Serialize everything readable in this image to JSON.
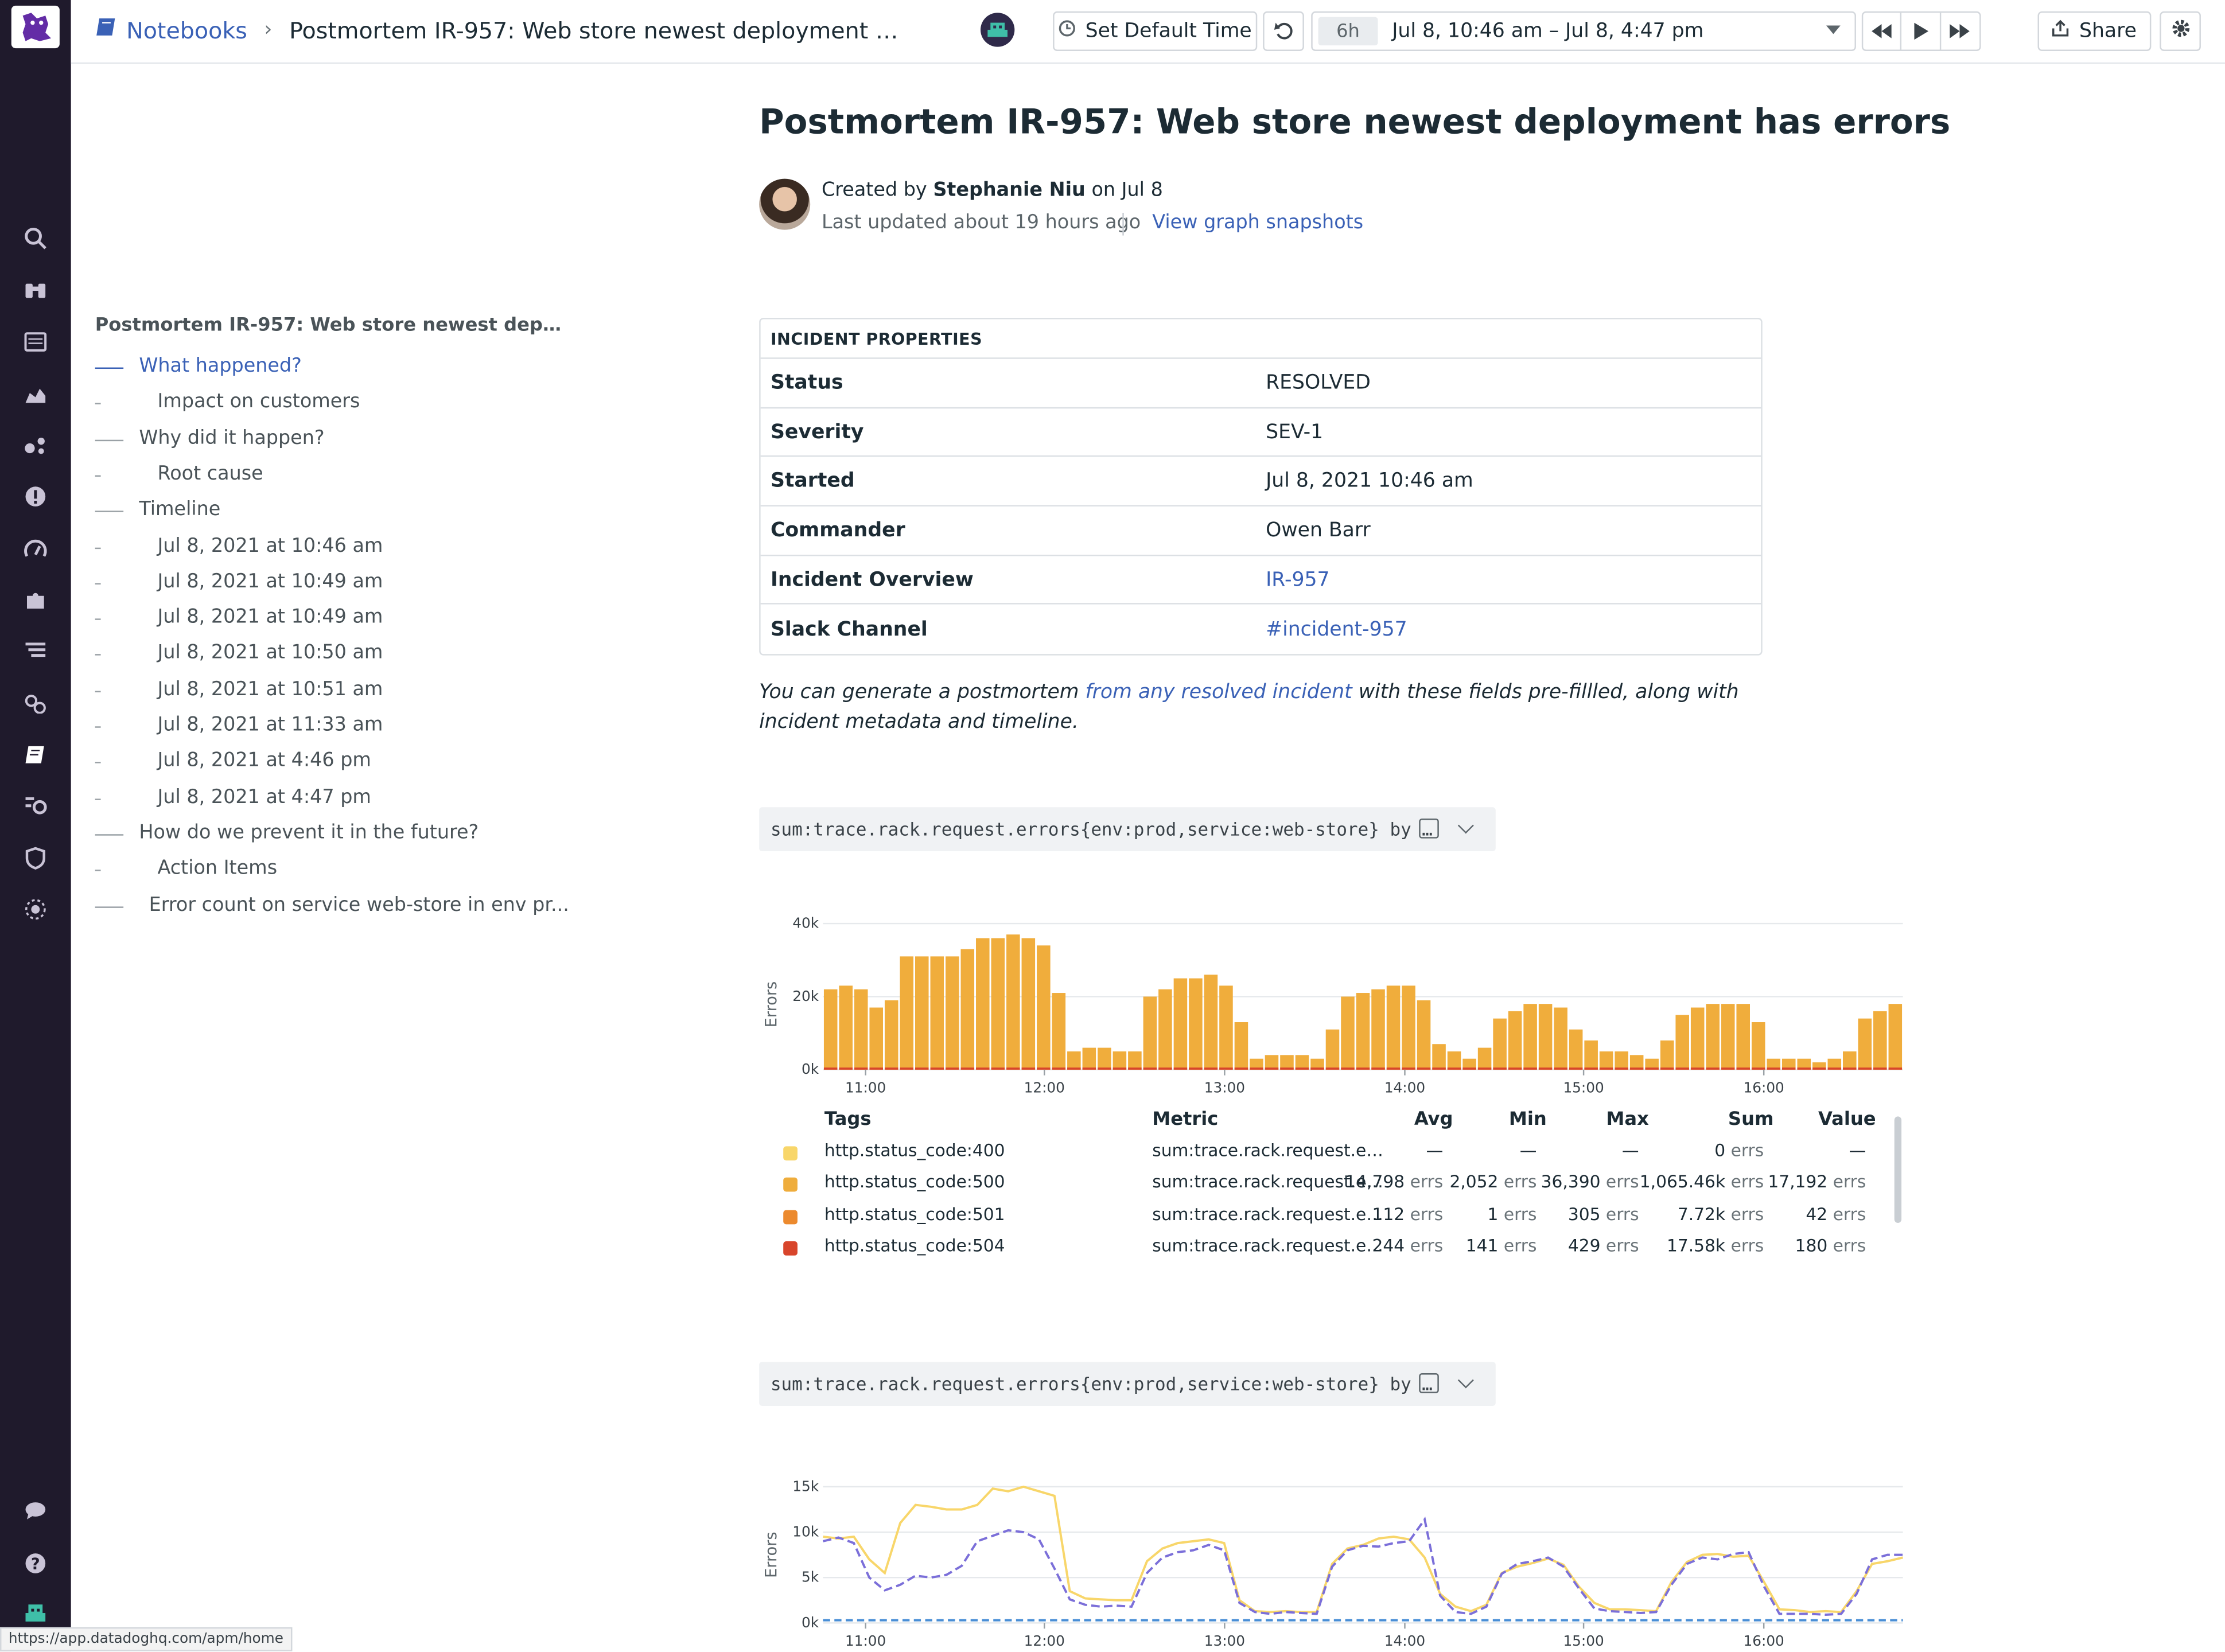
{
  "app": {
    "status_url": "https://app.datadoghq.com/apm/home"
  },
  "topbar": {
    "breadcrumb_root": "Notebooks",
    "breadcrumb_title": "Postmortem IR-957: Web store newest deployment has err...",
    "set_default_time": "Set Default Time",
    "time_span": "6h",
    "time_range": "Jul 8, 10:46 am – Jul 8, 4:47 pm",
    "share": "Share"
  },
  "toc": {
    "heading": "Postmortem IR-957: Web store newest deploy...",
    "items": [
      {
        "label": "What happened?",
        "level": 1,
        "active": true
      },
      {
        "label": "Impact on customers",
        "level": 2
      },
      {
        "label": "Why did it happen?",
        "level": 1
      },
      {
        "label": "Root cause",
        "level": 2
      },
      {
        "label": "Timeline",
        "level": 1
      },
      {
        "label": "Jul 8, 2021 at 10:46 am",
        "level": 2
      },
      {
        "label": "Jul 8, 2021 at 10:49 am",
        "level": 2
      },
      {
        "label": "Jul 8, 2021 at 10:49 am",
        "level": 2
      },
      {
        "label": "Jul 8, 2021 at 10:50 am",
        "level": 2
      },
      {
        "label": "Jul 8, 2021 at 10:51 am",
        "level": 2
      },
      {
        "label": "Jul 8, 2021 at 11:33 am",
        "level": 2
      },
      {
        "label": "Jul 8, 2021 at 4:46 pm",
        "level": 2
      },
      {
        "label": "Jul 8, 2021 at 4:47 pm",
        "level": 2
      },
      {
        "label": "How do we prevent it in the future?",
        "level": 1
      },
      {
        "label": "Action Items",
        "level": 2
      },
      {
        "label": "Error count on service web-store in env pr...",
        "level": 1.5
      }
    ]
  },
  "notebook": {
    "title": "Postmortem IR-957: Web store newest deployment has errors",
    "created_prefix": "Created by",
    "author": "Stephanie Niu",
    "created_suffix": "on Jul 8",
    "updated": "Last updated about 19 hours ago",
    "snapshots": "View graph snapshots",
    "props_header": "INCIDENT PROPERTIES",
    "props": [
      {
        "key": "Status",
        "value": "RESOLVED"
      },
      {
        "key": "Severity",
        "value": "SEV-1"
      },
      {
        "key": "Started",
        "value": "Jul 8, 2021 10:46 am"
      },
      {
        "key": "Commander",
        "value": "Owen Barr"
      },
      {
        "key": "Incident Overview",
        "value": "IR-957",
        "link": true
      },
      {
        "key": "Slack Channel",
        "value": "#incident-957",
        "link": true
      }
    ],
    "note_pre": "You can generate a postmortem ",
    "note_link": "from any resolved incident",
    "note_post": " with these fields pre-fillled, along with incident metadata and timeline.",
    "query1": "sum:trace.rack.request.errors{env:prod,service:web-store} by …",
    "query2": "sum:trace.rack.request.errors{env:prod,service:web-store} by …"
  },
  "colors": {
    "accent": "#3a61b6",
    "bar": "#f0ad3c",
    "s400": "#f8d66a",
    "s500": "#efad3c",
    "s501": "#ec8a2e",
    "s504": "#d8452b",
    "line1": "#f8d66a",
    "line2": "#7b6fd9"
  },
  "chart_data": [
    {
      "type": "bar",
      "ylabel": "Errors",
      "yticks": [
        "0k",
        "20k",
        "40k"
      ],
      "ylim": [
        0,
        45
      ],
      "xticks": [
        "11:00",
        "12:00",
        "13:00",
        "14:00",
        "15:00",
        "16:00"
      ],
      "values_k": [
        22,
        23,
        22,
        17,
        19,
        31,
        31,
        31,
        31,
        33,
        36,
        36,
        37,
        36,
        34,
        21,
        5,
        6,
        6,
        5,
        5,
        20,
        22,
        25,
        25,
        26,
        23,
        13,
        3,
        4,
        4,
        4,
        3,
        11,
        20,
        21,
        22,
        23,
        23,
        19,
        7,
        5,
        3,
        6,
        14,
        16,
        18,
        18,
        17,
        11,
        8,
        5,
        5,
        4,
        3,
        8,
        15,
        17,
        18,
        18,
        18,
        13,
        3,
        3,
        3,
        2,
        3,
        5,
        14,
        16,
        18
      ],
      "series_legend": {
        "headers": [
          "Tags",
          "Metric",
          "Avg",
          "Min",
          "Max",
          "Sum",
          "Value"
        ],
        "rows": [
          {
            "tag": "http.status_code:400",
            "metric": "sum:trace.rack.request.e…",
            "avg": "—",
            "min": "—",
            "max": "—",
            "sum": "0",
            "sum_u": "errs",
            "value": "—",
            "color": "#f8d66a"
          },
          {
            "tag": "http.status_code:500",
            "metric": "sum:trace.rack.request.e…",
            "avg": "14,798",
            "min": "2,052",
            "max": "36,390",
            "sum": "1,065.46k",
            "sum_u": "errs",
            "value": "17,192",
            "color": "#efad3c"
          },
          {
            "tag": "http.status_code:501",
            "metric": "sum:trace.rack.request.e…",
            "avg": "112",
            "min": "1",
            "max": "305",
            "sum": "7.72k",
            "sum_u": "errs",
            "value": "42",
            "color": "#ec8a2e"
          },
          {
            "tag": "http.status_code:504",
            "metric": "sum:trace.rack.request.e…",
            "avg": "244",
            "min": "141",
            "max": "429",
            "sum": "17.58k",
            "sum_u": "errs",
            "value": "180",
            "color": "#d8452b"
          }
        ],
        "unit": "errs"
      }
    },
    {
      "type": "line",
      "ylabel": "Errors",
      "yticks": [
        "0k",
        "5k",
        "10k",
        "15k"
      ],
      "ylim": [
        0,
        15
      ],
      "xticks": [
        "11:00",
        "12:00",
        "13:00",
        "14:00",
        "15:00",
        "16:00"
      ],
      "series_solid_k": [
        9.5,
        9.3,
        9.5,
        7,
        5.5,
        11,
        13,
        12.8,
        12.5,
        12.5,
        13,
        14.8,
        14.5,
        15,
        14.5,
        14,
        3.5,
        2.7,
        2.6,
        2.5,
        2.5,
        6.8,
        8.2,
        8.8,
        9,
        9.2,
        8.8,
        2.5,
        1.3,
        1.2,
        1.3,
        1.2,
        1.2,
        6.5,
        8.2,
        8.6,
        9.3,
        9.5,
        9.2,
        7.2,
        3.2,
        1.8,
        1.3,
        2,
        5.5,
        6.2,
        6.6,
        7.1,
        6.4,
        4,
        2.2,
        1.5,
        1.5,
        1.4,
        1.3,
        4.5,
        6.7,
        7.5,
        7.6,
        7.3,
        7.4,
        4.5,
        1.5,
        1.4,
        1.2,
        1.3,
        1.2,
        3.5,
        6.5,
        6.8,
        7.2
      ],
      "series_dashed_k": [
        9,
        9.4,
        8.8,
        5,
        3.6,
        4.2,
        5.2,
        5,
        5.3,
        6.3,
        9,
        9.6,
        10.2,
        10,
        9.2,
        6,
        2.6,
        2,
        1.8,
        1.9,
        1.8,
        5.5,
        7.2,
        7.8,
        8,
        8.6,
        8,
        2.2,
        1.2,
        1,
        1.2,
        1.1,
        1,
        6.2,
        8,
        8.5,
        8.4,
        8.8,
        9,
        11.4,
        3,
        1.2,
        1,
        1.8,
        5.4,
        6.5,
        6.8,
        7.2,
        6.2,
        3.8,
        1.6,
        1.3,
        1.2,
        1.1,
        1.2,
        4.2,
        6.5,
        7.2,
        7,
        7.6,
        7.8,
        4,
        1,
        1,
        1,
        0.9,
        1,
        3.2,
        7,
        7.5,
        7.5
      ],
      "series_flat_k": 0.3
    }
  ]
}
